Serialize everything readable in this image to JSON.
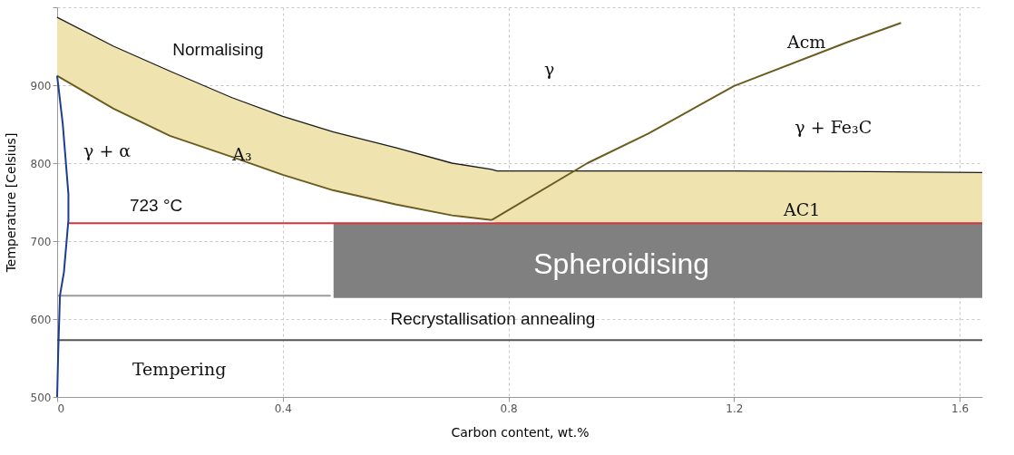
{
  "chart_data": {
    "type": "line",
    "xlabel": "Carbon content, wt.%",
    "ylabel": "Temperature [Celsius]",
    "xlim": [
      0,
      1.64
    ],
    "ylim": [
      500,
      1000
    ],
    "xticks": [
      {
        "value": 0,
        "label": "0"
      },
      0.4,
      0.8,
      1.2,
      1.6
    ],
    "yticks": [
      500,
      600,
      700,
      800,
      900,
      {
        "value": 1000,
        "label": null
      }
    ],
    "grid": true,
    "series": [
      {
        "color": "#1a1a1a",
        "x": [
          0,
          0.1,
          0.2,
          0.31,
          0.4,
          0.49,
          0.6,
          0.7,
          0.77,
          0.78,
          1.0,
          1.2,
          1.44,
          1.64
        ],
        "values": [
          987,
          950,
          918,
          884,
          860,
          840,
          820,
          800,
          792,
          790,
          790,
          790,
          789,
          788
        ],
        "lower": [
          912,
          870,
          835,
          808,
          785,
          765,
          747,
          733,
          727,
          723,
          723,
          723,
          723,
          723
        ],
        "upper": [
          987,
          950,
          918,
          884,
          860,
          840,
          820,
          800,
          792,
          790,
          790,
          790,
          789,
          788
        ]
      },
      {
        "color": "#6b5d1f",
        "x": [
          0,
          0.1,
          0.2,
          0.31,
          0.4,
          0.49,
          0.6,
          0.7,
          0.77
        ],
        "values": [
          912,
          870,
          835,
          808,
          785,
          765,
          747,
          733,
          727
        ]
      },
      {
        "color": "#6b5d1f",
        "x": [
          0.77,
          0.94,
          1.048,
          1.2,
          1.4,
          1.496
        ],
        "values": [
          727,
          800,
          838,
          899,
          955,
          980
        ]
      },
      {
        "color": "#9a9a9a",
        "x": [
          0,
          0.485
        ],
        "values": [
          630,
          630
        ]
      },
      {
        "color": "#555555",
        "x": [
          0,
          1.64
        ],
        "values": [
          573,
          573
        ]
      },
      {
        "color": "#d9333f",
        "x": [
          0.02,
          0.49,
          1.64
        ],
        "values": [
          723,
          723,
          723
        ],
        "lower": [
          null,
          627,
          627
        ],
        "upper": [
          null,
          723,
          723
        ]
      },
      {
        "color": "#1f3d8f",
        "x": [
          0,
          0.01,
          0.02,
          0.02,
          0.012,
          0.005,
          0.002,
          0
        ],
        "values": [
          912,
          850,
          760,
          727,
          660,
          630,
          560,
          500
        ]
      }
    ],
    "annotations": [
      "Normalising",
      "γ",
      "γ + α",
      "A₃",
      "723 °C",
      "Acm",
      "γ + Fe₃C",
      "AC1",
      "Spheroidising",
      "Recrystallisation annealing",
      "Tempering"
    ]
  }
}
